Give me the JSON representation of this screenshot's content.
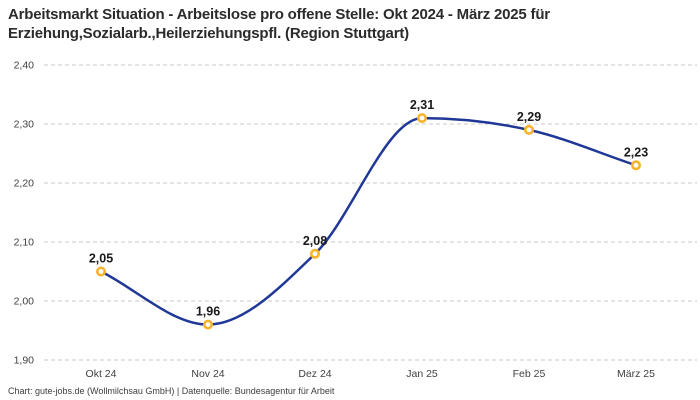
{
  "title": "Arbeitsmarkt Situation - Arbeitslose pro offene Stelle: Okt 2024 - März 2025 für Erziehung,Sozialarb.,Heilerziehungspfl. (Region Stuttgart)",
  "footer": "Chart: gute-jobs.de (Wollmilchsau GmbH) | Datenquelle: Bundesagentur für Arbeit",
  "chart_data": {
    "type": "line",
    "categories": [
      "Okt 24",
      "Nov 24",
      "Dez 24",
      "Jan 25",
      "Feb 25",
      "März 25"
    ],
    "values": [
      2.05,
      1.96,
      2.08,
      2.31,
      2.29,
      2.23
    ],
    "value_labels": [
      "2,05",
      "1,96",
      "2,08",
      "2,31",
      "2,29",
      "2,23"
    ],
    "y_ticks": [
      1.9,
      2.0,
      2.1,
      2.2,
      2.3,
      2.4
    ],
    "y_tick_labels": [
      "1,90",
      "2,00",
      "2,10",
      "2,20",
      "2,30",
      "2,40"
    ],
    "ylim": [
      1.9,
      2.4
    ],
    "xlabel": "",
    "ylabel": "",
    "grid": "horizontal-dashed",
    "legend": "none",
    "curve": "monotone",
    "colors": {
      "line": "#1f3796",
      "marker_ring": "#f7b32a",
      "marker_fill": "#ffffff",
      "grid": "#c9c9c9",
      "title": "#2b2b2b",
      "tick_label": "#3f3f3f",
      "data_label": "#1a1a1a",
      "footer": "#3d3d3d",
      "background": "#ffffff"
    }
  }
}
